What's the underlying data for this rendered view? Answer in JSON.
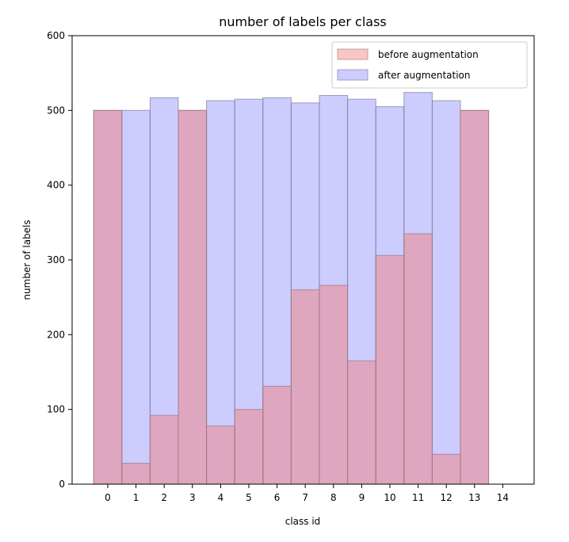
{
  "chart_data": {
    "type": "bar",
    "title": "number of labels per class",
    "xlabel": "class id",
    "ylabel": "number of labels",
    "x_ticks": [
      "0",
      "1",
      "2",
      "3",
      "4",
      "5",
      "6",
      "7",
      "8",
      "9",
      "10",
      "11",
      "12",
      "13",
      "14"
    ],
    "y_ticks": [
      "0",
      "100",
      "200",
      "300",
      "400",
      "500",
      "600"
    ],
    "ylim": [
      0,
      600
    ],
    "categories": [
      "0",
      "1",
      "2",
      "3",
      "4",
      "5",
      "6",
      "7",
      "8",
      "9",
      "10",
      "11",
      "12",
      "13"
    ],
    "series": [
      {
        "name": "before augmentation",
        "color": "#f08080",
        "values": [
          500,
          28,
          92,
          500,
          78,
          100,
          131,
          260,
          266,
          165,
          306,
          335,
          40,
          500
        ]
      },
      {
        "name": "after augmentation",
        "color": "#9999ff",
        "values": [
          500,
          500,
          517,
          500,
          513,
          515,
          517,
          510,
          520,
          515,
          505,
          524,
          513,
          500
        ]
      }
    ],
    "grid": false,
    "legend_position": "upper right"
  }
}
